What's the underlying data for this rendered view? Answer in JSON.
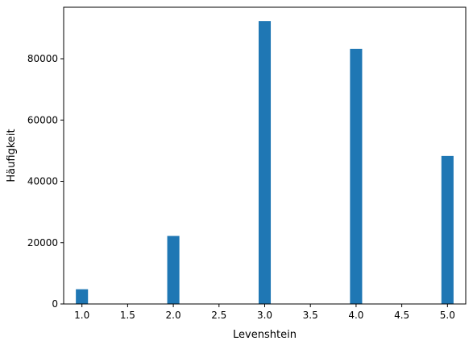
{
  "chart_data": {
    "type": "bar",
    "title": "",
    "xlabel": "Levenshtein",
    "ylabel": "Häufigkeit",
    "xlim": [
      0.8,
      5.2
    ],
    "ylim": [
      0,
      96800
    ],
    "x_ticks": [
      "1.0",
      "1.5",
      "2.0",
      "2.5",
      "3.0",
      "3.5",
      "4.0",
      "4.5",
      "5.0"
    ],
    "y_ticks": [
      "0",
      "20000",
      "40000",
      "60000",
      "80000"
    ],
    "bin_width": 0.133,
    "series": [
      {
        "values": [
          {
            "x": 1,
            "y": 4800
          },
          {
            "x": 2,
            "y": 22200
          },
          {
            "x": 3,
            "y": 92300
          },
          {
            "x": 4,
            "y": 83200
          },
          {
            "x": 5,
            "y": 48300
          }
        ]
      }
    ],
    "bar_color": "#1f77b4",
    "grid": false
  }
}
